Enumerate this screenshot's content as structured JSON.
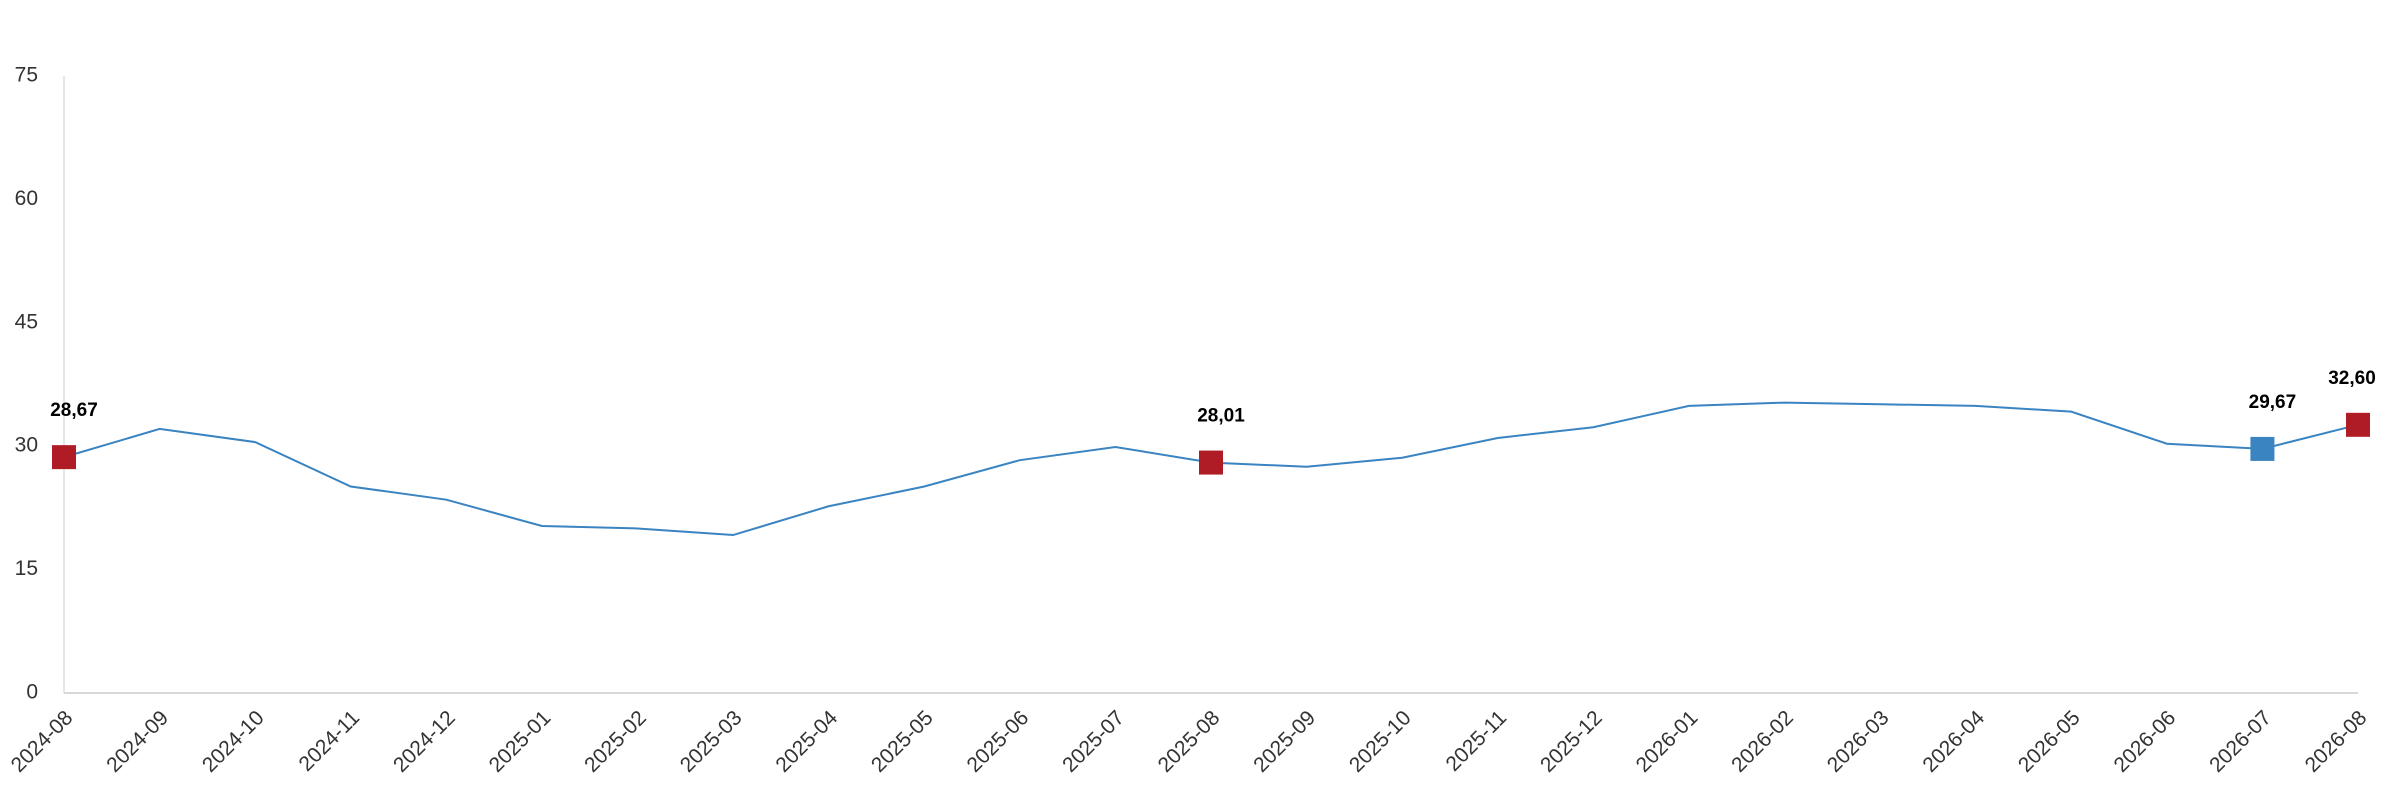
{
  "chart_data": {
    "type": "line",
    "categories": [
      "2024-08",
      "2024-09",
      "2024-10",
      "2024-11",
      "2024-12",
      "2025-01",
      "2025-02",
      "2025-03",
      "2025-04",
      "2025-05",
      "2025-06",
      "2025-07",
      "2025-08",
      "2025-09",
      "2025-10",
      "2025-11",
      "2025-12",
      "2026-01",
      "2026-02",
      "2026-03",
      "2026-04",
      "2026-05",
      "2026-06",
      "2026-07",
      "2026-08"
    ],
    "values": [
      28.67,
      32.1,
      30.5,
      25.1,
      23.5,
      20.3,
      20.0,
      19.2,
      22.7,
      25.1,
      28.3,
      29.9,
      28.01,
      27.5,
      28.6,
      31.0,
      32.3,
      34.9,
      35.3,
      35.1,
      34.9,
      34.2,
      30.3,
      29.67,
      32.6
    ],
    "value_labels": [
      "28,67",
      null,
      null,
      null,
      null,
      null,
      null,
      null,
      null,
      null,
      null,
      null,
      "28,01",
      null,
      null,
      null,
      null,
      null,
      null,
      null,
      null,
      null,
      null,
      "29,67",
      "32,60"
    ],
    "marker_colors": [
      "#b01c25",
      null,
      null,
      null,
      null,
      null,
      null,
      null,
      null,
      null,
      null,
      null,
      "#b01c25",
      null,
      null,
      null,
      null,
      null,
      null,
      null,
      null,
      null,
      null,
      "#3a84c1",
      "#b01c25"
    ],
    "color": "#3a84c1",
    "ylim": [
      0,
      75
    ],
    "yticks": [
      0,
      15,
      30,
      45,
      60,
      75
    ],
    "grid": false
  }
}
